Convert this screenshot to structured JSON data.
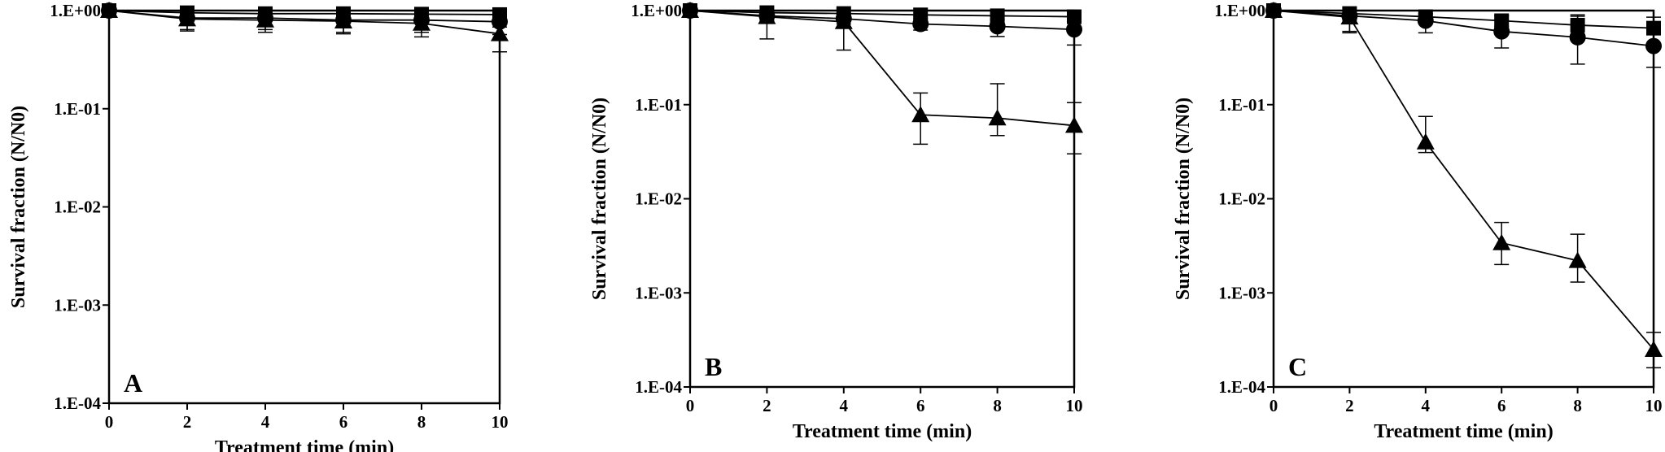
{
  "chart_data": [
    {
      "type": "line",
      "panel_label": "A",
      "xlabel": "Treatment time (min)",
      "ylabel": "Survival fraction (N/N0)",
      "yscale": "log",
      "xlim": [
        0,
        10
      ],
      "ylim": [
        0.0001,
        1
      ],
      "x_ticks": [
        "0",
        "2",
        "4",
        "6",
        "8",
        "10"
      ],
      "y_ticks": [
        "1.E+00",
        "1.E-01",
        "1.E-02",
        "1.E-03",
        "1.E-04"
      ],
      "x": [
        0,
        2,
        4,
        6,
        8,
        10
      ],
      "series": [
        {
          "marker": "square",
          "values": [
            1.0,
            0.95,
            0.93,
            0.93,
            0.92,
            0.91
          ],
          "err_upper": [
            0,
            0,
            0,
            0,
            0,
            0.04
          ],
          "err_lower": [
            0,
            0.1,
            0.1,
            0.1,
            0.1,
            0.1
          ]
        },
        {
          "marker": "circle",
          "values": [
            1.0,
            0.84,
            0.84,
            0.8,
            0.8,
            0.77
          ],
          "err_upper": [
            0,
            0.1,
            0.1,
            0.1,
            0.1,
            0.1
          ],
          "err_lower": [
            0,
            0.2,
            0.2,
            0.2,
            0.2,
            0.2
          ]
        },
        {
          "marker": "triangle",
          "values": [
            1.0,
            0.82,
            0.8,
            0.78,
            0.74,
            0.58
          ],
          "err_upper": [
            0,
            0.1,
            0.1,
            0.1,
            0.1,
            0.1
          ],
          "err_lower": [
            0,
            0.2,
            0.2,
            0.2,
            0.2,
            0.2
          ]
        }
      ]
    },
    {
      "type": "line",
      "panel_label": "B",
      "xlabel": "Treatment time (min)",
      "ylabel": "Survival fraction (N/N0)",
      "yscale": "log",
      "xlim": [
        0,
        10
      ],
      "ylim": [
        0.0001,
        1
      ],
      "x_ticks": [
        "0",
        "2",
        "4",
        "6",
        "8",
        "10"
      ],
      "y_ticks": [
        "1.E+00",
        "1.E-01",
        "1.E-02",
        "1.E-03",
        "1.E-04"
      ],
      "x": [
        0,
        2,
        4,
        6,
        8,
        10
      ],
      "series": [
        {
          "marker": "square",
          "values": [
            1.0,
            0.95,
            0.93,
            0.9,
            0.88,
            0.86
          ],
          "err_upper": [
            0,
            0,
            0,
            0,
            0,
            0
          ],
          "err_lower": [
            0,
            0,
            0,
            0,
            0,
            0
          ]
        },
        {
          "marker": "circle",
          "values": [
            1.0,
            0.88,
            0.82,
            0.72,
            0.68,
            0.63
          ],
          "err_upper": [
            0,
            0.1,
            0.1,
            0.1,
            0.12,
            0.15
          ],
          "err_lower": [
            0,
            0.1,
            0.1,
            0.1,
            0.15,
            0.2
          ]
        },
        {
          "marker": "triangle",
          "values": [
            1.0,
            0.86,
            0.76,
            0.078,
            0.072,
            0.06
          ],
          "err_upper": [
            0,
            0.1,
            0.15,
            0.055,
            0.095,
            0.045
          ],
          "err_lower": [
            0,
            0.36,
            0.38,
            0.04,
            0.025,
            0.03
          ]
        }
      ]
    },
    {
      "type": "line",
      "panel_label": "C",
      "xlabel": "Treatment time (min)",
      "ylabel": "Survival fraction (N/N0)",
      "yscale": "log",
      "xlim": [
        0,
        10
      ],
      "ylim": [
        0.0001,
        1
      ],
      "x_ticks": [
        "0",
        "2",
        "4",
        "6",
        "8",
        "10"
      ],
      "y_ticks": [
        "1.E+00",
        "1.E-01",
        "1.E-02",
        "1.E-03",
        "1.E-04"
      ],
      "x": [
        0,
        2,
        4,
        6,
        8,
        10
      ],
      "series": [
        {
          "marker": "square",
          "values": [
            1.0,
            0.93,
            0.86,
            0.78,
            0.7,
            0.65
          ],
          "err_upper": [
            0,
            0,
            0.05,
            0.1,
            0.2,
            0.2
          ],
          "err_lower": [
            0,
            0,
            0.05,
            0.1,
            0.2,
            0.2
          ]
        },
        {
          "marker": "circle",
          "values": [
            1.0,
            0.88,
            0.78,
            0.6,
            0.52,
            0.42
          ],
          "err_upper": [
            0,
            0.1,
            0.15,
            0.2,
            0.35,
            0.3
          ],
          "err_lower": [
            0,
            0.3,
            0.2,
            0.2,
            0.25,
            0.17
          ]
        },
        {
          "marker": "triangle",
          "values": [
            1.0,
            0.85,
            0.04,
            0.0034,
            0.0022,
            0.00025
          ],
          "err_upper": [
            0,
            0.1,
            0.035,
            0.0022,
            0.002,
            0.00013
          ],
          "err_lower": [
            0,
            0.25,
            0.009,
            0.0014,
            0.0009,
            9e-05
          ]
        }
      ]
    }
  ]
}
